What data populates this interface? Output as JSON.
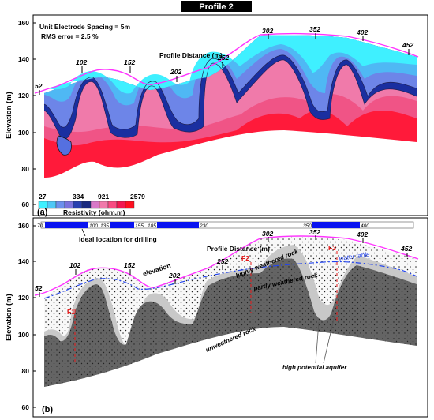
{
  "title": "Profile 2",
  "panel_a": {
    "label": "(a)",
    "notes": [
      "Unit Electrode Spacing = 5m",
      "RMS error = 2.5 %"
    ],
    "profile_label": "Profile Distance (m)",
    "distance_ticks": [
      "52",
      "102",
      "152",
      "202",
      "252",
      "302",
      "352",
      "402",
      "452"
    ],
    "ylabel": "Elevation (m)",
    "yticks": [
      "160",
      "140",
      "120",
      "100",
      "80",
      "60"
    ],
    "colorbar": {
      "values": [
        "27",
        "334",
        "921",
        "2579"
      ],
      "title": "Resistivity (ohm.m)",
      "colors": [
        "#3ff0ff",
        "#4fc8f6",
        "#6d90ec",
        "#7b72dc",
        "#2840b0",
        "#1a2a80",
        "#d878c8",
        "#f07aaa",
        "#f84c82",
        "#f21850",
        "#ff1020"
      ]
    }
  },
  "panel_b": {
    "label": "(b)",
    "profile_label": "Profile Distance (m)",
    "distance_ticks": [
      "52",
      "102",
      "152",
      "202",
      "252",
      "302",
      "352",
      "402",
      "452"
    ],
    "ylabel": "Elevation (m)",
    "yticks": [
      "160",
      "140",
      "120",
      "100",
      "80",
      "60"
    ],
    "drill_segments": [
      {
        "start": "70",
        "end": "100"
      },
      {
        "start": "135",
        "end": "155"
      },
      {
        "start": "185",
        "end": "230"
      },
      {
        "start": "350",
        "end": "400"
      }
    ],
    "drill_label": "ideal location for drilling",
    "annotations": {
      "elevation": "elevation",
      "highly_weathered": "highly weathered rock",
      "partly_weathered": "partly weathered rock",
      "water_table": "water table",
      "unweathered": "unweathered rock",
      "aquifer": "high potential aquifer"
    },
    "faults": [
      "F1",
      "F2",
      "F3"
    ]
  },
  "colors": {
    "surface": "#ff33ff",
    "water_table": "#2244ee",
    "fault": "#e81818",
    "drill_bar": "#0a14f0",
    "unweathered": "#646464",
    "partly_weathered": "#c8c8c8"
  }
}
